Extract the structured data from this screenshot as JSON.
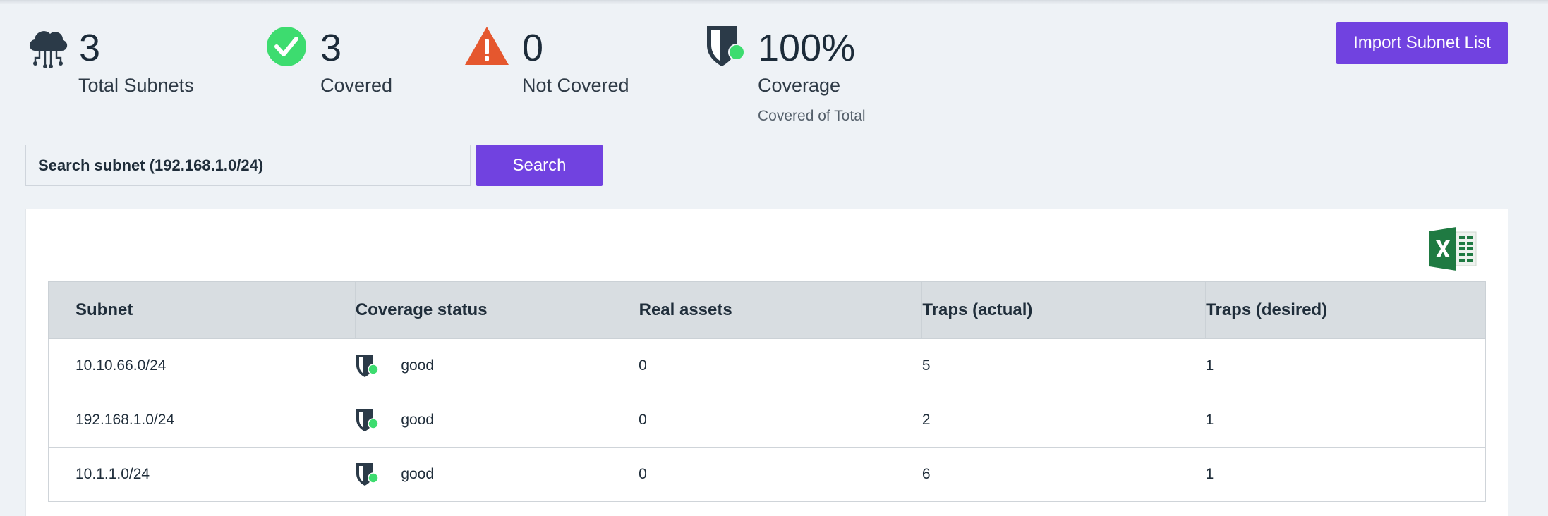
{
  "stats": {
    "total": {
      "value": "3",
      "label": "Total Subnets",
      "icon": "cloud-network-icon"
    },
    "covered": {
      "value": "3",
      "label": "Covered",
      "icon": "check-circle-icon"
    },
    "not_covered": {
      "value": "0",
      "label": "Not Covered",
      "icon": "warning-triangle-icon"
    },
    "coverage": {
      "value": "100%",
      "label": "Coverage",
      "sublabel": "Covered of Total",
      "icon": "shield-status-icon"
    }
  },
  "actions": {
    "import_label": "Import Subnet List",
    "search_placeholder": "Search subnet (192.168.1.0/24)",
    "search_value": "",
    "search_label": "Search",
    "export_icon": "excel-export-icon"
  },
  "table": {
    "columns": [
      "Subnet",
      "Coverage status",
      "Real assets",
      "Traps (actual)",
      "Traps (desired)"
    ],
    "rows": [
      {
        "subnet": "10.10.66.0/24",
        "status": "good",
        "real_assets": "0",
        "traps_actual": "5",
        "traps_desired": "1"
      },
      {
        "subnet": "192.168.1.0/24",
        "status": "good",
        "real_assets": "0",
        "traps_actual": "2",
        "traps_desired": "1"
      },
      {
        "subnet": "10.1.1.0/24",
        "status": "good",
        "real_assets": "0",
        "traps_actual": "6",
        "traps_desired": "1"
      }
    ]
  },
  "colors": {
    "accent": "#7142e0",
    "success": "#3ddc6f",
    "warning": "#e5572e",
    "excel": "#1f7a42",
    "text": "#1c2b39"
  }
}
